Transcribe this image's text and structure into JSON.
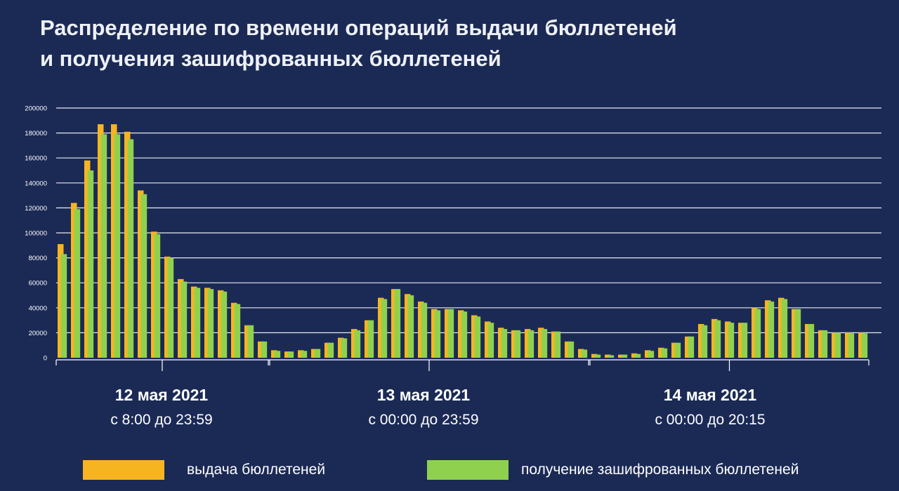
{
  "title": {
    "line1": "Распределение по времени операций выдачи бюллетеней",
    "line2": "и получения зашифрованных бюллетеней"
  },
  "days": [
    {
      "date": "12 мая 2021",
      "time": "с 8:00 до 23:59"
    },
    {
      "date": "13 мая 2021",
      "time": "с 00:00 до 23:59"
    },
    {
      "date": "14 мая 2021",
      "time": "с 00:00 до 20:15"
    }
  ],
  "legend": {
    "issued": "выдача бюллетеней",
    "received": "получение зашифрованных бюллетеней"
  },
  "colors": {
    "issued": "#f6b520",
    "received": "#8fd14f",
    "background": "#1b2a55",
    "grid": "#ffffff"
  },
  "chart_data": {
    "type": "bar",
    "ylim": [
      0,
      200000
    ],
    "yticks": [
      "0",
      "20000",
      "40000",
      "60000",
      "80000",
      "100000",
      "120000",
      "140000",
      "160000",
      "180000",
      "200000"
    ],
    "grid": true,
    "legend_position": "bottom",
    "groups": [
      {
        "label": "12 мая 2021",
        "count": 16
      },
      {
        "label": "13 мая 2021",
        "count": 24
      },
      {
        "label": "14 мая 2021",
        "count": 21
      }
    ],
    "series": [
      {
        "name": "выдача бюллетеней",
        "values": [
          91000,
          124000,
          158000,
          187000,
          187000,
          181000,
          134000,
          101000,
          81000,
          63000,
          57000,
          56000,
          54000,
          44000,
          26000,
          13000,
          6000,
          5000,
          6000,
          7000,
          12000,
          16000,
          23000,
          30000,
          48000,
          55000,
          51000,
          45000,
          39000,
          39000,
          38000,
          34000,
          29000,
          24000,
          22000,
          23000,
          24000,
          21000,
          13000,
          7000,
          3000,
          2500,
          2500,
          3500,
          6000,
          8000,
          12000,
          17000,
          27000,
          31000,
          29000,
          28000,
          40000,
          46000,
          48000,
          39000,
          27000,
          22000,
          20000,
          20000,
          20000
        ]
      },
      {
        "name": "получение зашифрованных бюллетеней",
        "values": [
          83000,
          119000,
          150000,
          179000,
          179000,
          175000,
          131000,
          99000,
          80000,
          61000,
          56000,
          55000,
          53000,
          43000,
          26000,
          13000,
          5500,
          5000,
          5500,
          7000,
          12000,
          15500,
          22000,
          30000,
          47000,
          55000,
          50000,
          44000,
          38000,
          39000,
          37000,
          33000,
          28000,
          23000,
          22000,
          22000,
          23000,
          21000,
          13000,
          6500,
          2500,
          2000,
          2500,
          3000,
          5500,
          7500,
          12000,
          17000,
          26000,
          30000,
          28000,
          28000,
          39000,
          45000,
          47000,
          39000,
          27000,
          22000,
          20000,
          19500,
          19500
        ]
      }
    ]
  }
}
